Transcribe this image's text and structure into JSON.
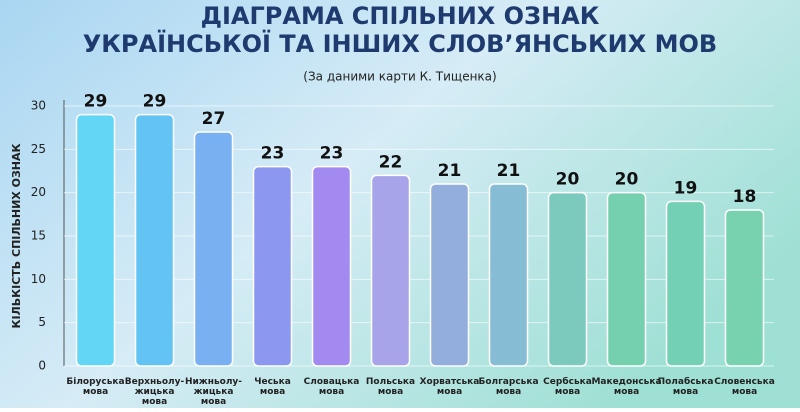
{
  "chart_data": {
    "type": "bar",
    "title": "ДІАГРАМА СПІЛЬНИХ ОЗНАК\nУКРАЇНСЬКОЇ ТА ІНШИХ СЛОВ’ЯНСЬКИХ МОВ",
    "subtitle": "(За даними карти К. Тищенка)",
    "y_label": "КІЛЬКІСТЬ СПІЛЬНИХ ОЗНАК",
    "categories": [
      "Білоруська\nмова",
      "Верхньолу-\nжицька\nмова",
      "Нижньолу-\nжицька\nмова",
      "Чеська\nмова",
      "Словацька\nмова",
      "Польська\nмова",
      "Хорватська\nмова",
      "Болгарська\nмова",
      "Сербська\nмова",
      "Македонська\nмова",
      "Полабська\nмова",
      "Словенська\nмова"
    ],
    "values": [
      29,
      29,
      27,
      23,
      23,
      22,
      21,
      21,
      20,
      20,
      19,
      18
    ],
    "colors": [
      "#63d6f6",
      "#63c4f4",
      "#78b0f2",
      "#8c98f0",
      "#a38af0",
      "#a7a4ea",
      "#93aedc",
      "#86bcd4",
      "#7ccabd",
      "#74d0ae",
      "#74d0b4",
      "#78d2b0"
    ],
    "ylim": [
      0,
      30
    ],
    "yticks": [
      0,
      5,
      10,
      15,
      20,
      25,
      30
    ],
    "grid": true
  }
}
